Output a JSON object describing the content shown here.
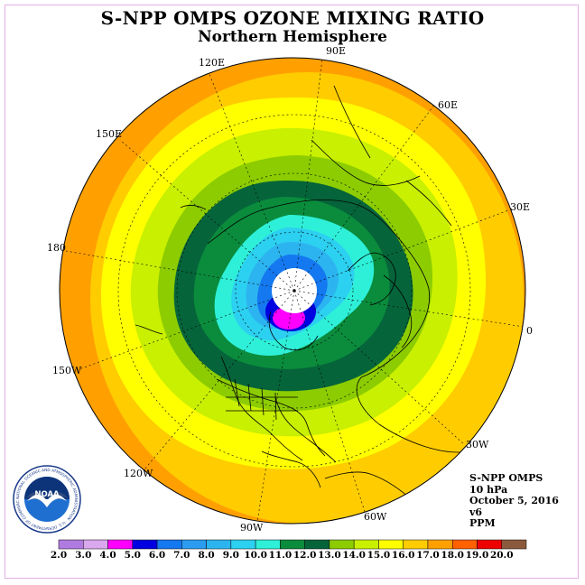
{
  "title": "S-NPP OMPS OZONE MIXING RATIO",
  "subtitle": "Northern Hemisphere",
  "info": {
    "instrument": "S-NPP OMPS",
    "level": "10 hPa",
    "date": "October 5, 2016",
    "version": "v6",
    "units": "PPM"
  },
  "longitude_labels": {
    "l90e": "90E",
    "l60e": "60E",
    "l30e": "30E",
    "l0": "0",
    "l30w": "30W",
    "l60w": "60W",
    "l90w": "90W",
    "l120w": "120W",
    "l150w": "150W",
    "l180": "180",
    "l150e": "150E",
    "l120e": "120E"
  },
  "logo": {
    "text": "NOAA",
    "ring_text": "NATIONAL OCEANIC AND ATMOSPHERIC ADMINISTRATION · U.S. DEPARTMENT OF COMMERCE"
  },
  "colorbar": {
    "ticks": [
      "2.0",
      "3.0",
      "4.0",
      "5.0",
      "6.0",
      "7.0",
      "8.0",
      "9.0",
      "10.0",
      "11.0",
      "12.0",
      "13.0",
      "14.0",
      "15.0",
      "16.0",
      "17.0",
      "18.0",
      "19.0",
      "20.0"
    ],
    "colors": [
      "#b07be0",
      "#d9a8ee",
      "#ff00ff",
      "#0000e0",
      "#1478f0",
      "#2c9cf0",
      "#2cb4f0",
      "#2cd0f0",
      "#2ef0d8",
      "#0a8c3c",
      "#05643a",
      "#8ccc00",
      "#c8f000",
      "#ffff00",
      "#ffcc00",
      "#ffa000",
      "#ff6000",
      "#ee0000",
      "#8b5a3c"
    ]
  },
  "contour_colors": {
    "outer_orange": "#ffa000",
    "orange_gold": "#ffcc00",
    "yellow": "#ffff00",
    "yellow_green": "#c8f000",
    "light_green": "#8ccc00",
    "dark_green": "#05643a",
    "green": "#0a8c3c",
    "aqua": "#2ef0d8",
    "cyan": "#2cd0f0",
    "light_blue": "#2cb4f0",
    "blue": "#1478f0",
    "deep_blue": "#0000e0",
    "magenta": "#ff00ff",
    "no_data": "#ffffff"
  }
}
